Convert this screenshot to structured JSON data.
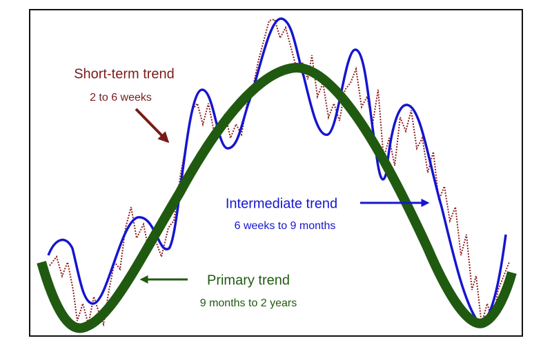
{
  "labels": {
    "short_term": {
      "title": "Short-term trend",
      "period": "2 to 6 weeks"
    },
    "intermediate": {
      "title": "Intermediate trend",
      "period": "6 weeks to 9 months"
    },
    "primary": {
      "title": "Primary trend",
      "period": "9 months to 2 years"
    }
  }
}
